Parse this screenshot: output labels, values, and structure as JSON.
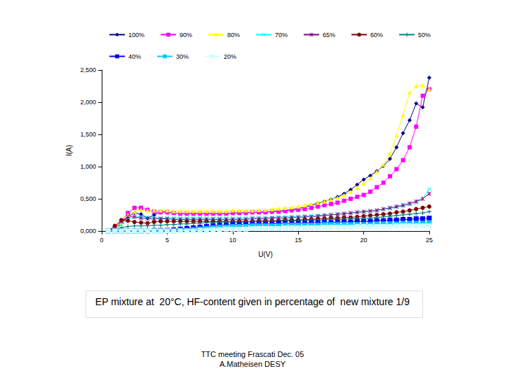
{
  "chart_data": {
    "type": "line",
    "title": "EP mixture at  20°C, HF-content given in percentage of  new mixture 1/9",
    "annotations": [
      "TTC meeting Frascati Dec. 05",
      "A.Matheisen DESY"
    ],
    "x_label": "U(V)",
    "y_label": "I(A)",
    "xlim": [
      0,
      25
    ],
    "xticks": [
      0,
      5,
      10,
      15,
      20,
      25
    ],
    "ylim": [
      0,
      2.5
    ],
    "yticks": [
      {
        "value": 0,
        "label": "0,000"
      },
      {
        "value": 0.5,
        "label": "0,500"
      },
      {
        "value": 1,
        "label": "1,000"
      },
      {
        "value": 1.5,
        "label": "1,500"
      },
      {
        "value": 2,
        "label": "2,000"
      },
      {
        "value": 2.5,
        "label": "2,500"
      }
    ],
    "grid": false,
    "legend": "top",
    "x": [
      0.5,
      1,
      1.5,
      2,
      2.5,
      3,
      3.5,
      4,
      4.5,
      5,
      5.5,
      6,
      6.5,
      7,
      7.5,
      8,
      8.5,
      9,
      9.5,
      10,
      10.5,
      11,
      11.5,
      12,
      12.5,
      13,
      13.5,
      14,
      14.5,
      15,
      15.5,
      16,
      16.5,
      17,
      17.5,
      18,
      18.5,
      19,
      19.5,
      20,
      20.5,
      21,
      21.5,
      22,
      22.5,
      23,
      23.5,
      24,
      24.5,
      25
    ],
    "series": [
      {
        "name": "100%",
        "color": "#000080",
        "marker": "diamond",
        "values": [
          0,
          0.02,
          0.12,
          0.22,
          0.28,
          0.26,
          0.2,
          0.25,
          0.3,
          0.29,
          0.28,
          0.27,
          0.27,
          0.27,
          0.27,
          0.27,
          0.27,
          0.27,
          0.27,
          0.28,
          0.28,
          0.28,
          0.29,
          0.29,
          0.3,
          0.3,
          0.31,
          0.32,
          0.33,
          0.35,
          0.37,
          0.4,
          0.43,
          0.46,
          0.49,
          0.53,
          0.58,
          0.64,
          0.72,
          0.8,
          0.86,
          0.93,
          1.01,
          1.12,
          1.3,
          1.52,
          1.72,
          1.98,
          1.92,
          2.38
        ]
      },
      {
        "name": "90%",
        "color": "#FF00FF",
        "marker": "square",
        "values": [
          0,
          0.05,
          0.15,
          0.28,
          0.36,
          0.36,
          0.33,
          0.3,
          0.29,
          0.29,
          0.28,
          0.27,
          0.27,
          0.27,
          0.27,
          0.27,
          0.27,
          0.27,
          0.27,
          0.28,
          0.28,
          0.28,
          0.29,
          0.29,
          0.29,
          0.3,
          0.3,
          0.31,
          0.32,
          0.33,
          0.34,
          0.36,
          0.38,
          0.4,
          0.42,
          0.44,
          0.47,
          0.5,
          0.53,
          0.56,
          0.61,
          0.68,
          0.75,
          0.85,
          0.96,
          1.1,
          1.3,
          1.62,
          2.1,
          2.2
        ]
      },
      {
        "name": "80%",
        "color": "#FFFF00",
        "marker": "triangle",
        "values": [
          0,
          0.04,
          0.13,
          0.25,
          0.3,
          0.33,
          0.32,
          0.32,
          0.32,
          0.32,
          0.31,
          0.31,
          0.31,
          0.31,
          0.31,
          0.31,
          0.31,
          0.31,
          0.31,
          0.32,
          0.32,
          0.32,
          0.32,
          0.33,
          0.33,
          0.34,
          0.35,
          0.36,
          0.37,
          0.38,
          0.4,
          0.42,
          0.44,
          0.46,
          0.49,
          0.52,
          0.56,
          0.61,
          0.67,
          0.74,
          0.82,
          0.92,
          1.03,
          1.2,
          1.48,
          1.8,
          2.15,
          2.25,
          2.26,
          2.2
        ]
      },
      {
        "name": "70%",
        "color": "#00FFFF",
        "marker": "x",
        "values": [
          0,
          0.03,
          0.1,
          0.18,
          0.22,
          0.22,
          0.21,
          0.21,
          0.2,
          0.2,
          0.2,
          0.2,
          0.2,
          0.2,
          0.2,
          0.2,
          0.2,
          0.2,
          0.2,
          0.2,
          0.2,
          0.2,
          0.21,
          0.21,
          0.21,
          0.21,
          0.22,
          0.22,
          0.22,
          0.23,
          0.23,
          0.24,
          0.24,
          0.25,
          0.25,
          0.26,
          0.27,
          0.28,
          0.29,
          0.3,
          0.31,
          0.32,
          0.34,
          0.35,
          0.37,
          0.39,
          0.41,
          0.44,
          0.5,
          0.65
        ]
      },
      {
        "name": "65%",
        "color": "#800080",
        "marker": "star",
        "values": [
          0,
          0.05,
          0.15,
          0.22,
          0.22,
          0.2,
          0.19,
          0.19,
          0.19,
          0.19,
          0.18,
          0.18,
          0.18,
          0.18,
          0.18,
          0.18,
          0.18,
          0.18,
          0.18,
          0.18,
          0.18,
          0.18,
          0.19,
          0.19,
          0.19,
          0.2,
          0.2,
          0.2,
          0.21,
          0.21,
          0.22,
          0.22,
          0.23,
          0.24,
          0.25,
          0.26,
          0.27,
          0.28,
          0.29,
          0.3,
          0.31,
          0.32,
          0.34,
          0.36,
          0.38,
          0.4,
          0.43,
          0.46,
          0.5,
          0.58
        ]
      },
      {
        "name": "60%",
        "color": "#800000",
        "marker": "circle",
        "values": [
          0,
          0.08,
          0.17,
          0.16,
          0.14,
          0.13,
          0.12,
          0.14,
          0.15,
          0.15,
          0.15,
          0.15,
          0.15,
          0.15,
          0.15,
          0.15,
          0.15,
          0.15,
          0.15,
          0.15,
          0.15,
          0.15,
          0.15,
          0.16,
          0.16,
          0.16,
          0.16,
          0.17,
          0.17,
          0.17,
          0.18,
          0.18,
          0.19,
          0.19,
          0.2,
          0.2,
          0.21,
          0.21,
          0.22,
          0.23,
          0.24,
          0.25,
          0.26,
          0.27,
          0.29,
          0.3,
          0.32,
          0.34,
          0.36,
          0.38
        ]
      },
      {
        "name": "50%",
        "color": "#008080",
        "marker": "plus",
        "values": [
          0,
          0.02,
          0.05,
          0.07,
          0.08,
          0.08,
          0.08,
          0.09,
          0.09,
          0.1,
          0.1,
          0.11,
          0.11,
          0.12,
          0.12,
          0.13,
          0.13,
          0.14,
          0.14,
          0.14,
          0.14,
          0.14,
          0.15,
          0.15,
          0.15,
          0.15,
          0.15,
          0.16,
          0.16,
          0.16,
          0.16,
          0.17,
          0.17,
          0.17,
          0.18,
          0.18,
          0.18,
          0.19,
          0.19,
          0.2,
          0.2,
          0.21,
          0.22,
          0.23,
          0.24,
          0.25,
          0.26,
          0.27,
          0.28,
          0.3
        ]
      },
      {
        "name": "40%",
        "color": "#0000FF",
        "marker": "dash",
        "values": [
          0,
          0,
          0,
          0,
          0,
          0,
          0,
          0.01,
          0.01,
          0.01,
          0.02,
          0.03,
          0.04,
          0.05,
          0.06,
          0.07,
          0.08,
          0.09,
          0.09,
          0.1,
          0.1,
          0.1,
          0.11,
          0.11,
          0.11,
          0.11,
          0.12,
          0.12,
          0.12,
          0.12,
          0.12,
          0.13,
          0.13,
          0.13,
          0.13,
          0.14,
          0.14,
          0.14,
          0.15,
          0.15,
          0.15,
          0.16,
          0.16,
          0.17,
          0.17,
          0.18,
          0.18,
          0.19,
          0.19,
          0.2
        ]
      },
      {
        "name": "30%",
        "color": "#00CCFF",
        "marker": "dash",
        "values": [
          0,
          0,
          0,
          0,
          0,
          0,
          0,
          0,
          0,
          0,
          0,
          0.01,
          0.01,
          0.02,
          0.03,
          0.04,
          0.05,
          0.06,
          0.06,
          0.07,
          0.07,
          0.07,
          0.08,
          0.08,
          0.08,
          0.08,
          0.08,
          0.09,
          0.09,
          0.09,
          0.09,
          0.09,
          0.09,
          0.1,
          0.1,
          0.1,
          0.1,
          0.1,
          0.1,
          0.1,
          0.1,
          0.11,
          0.11,
          0.11,
          0.11,
          0.12,
          0.12,
          0.12,
          0.12,
          0.13
        ]
      },
      {
        "name": "20%",
        "color": "#CCFFFF",
        "marker": "dash",
        "values": [
          0,
          0,
          0,
          0,
          0,
          0,
          0,
          0,
          0,
          0,
          0,
          0,
          0,
          0,
          0.01,
          0.01,
          0.02,
          0.02,
          0.03,
          0.03,
          0.03,
          0.03,
          0.04,
          0.04,
          0.04,
          0.04,
          0.04,
          0.05,
          0.05,
          0.05,
          0.05,
          0.05,
          0.05,
          0.06,
          0.06,
          0.06,
          0.06,
          0.06,
          0.07,
          0.07,
          0.07,
          0.07,
          0.07,
          0.07,
          0.08,
          0.08,
          0.08,
          0.08,
          0.08,
          0.08
        ]
      }
    ]
  }
}
